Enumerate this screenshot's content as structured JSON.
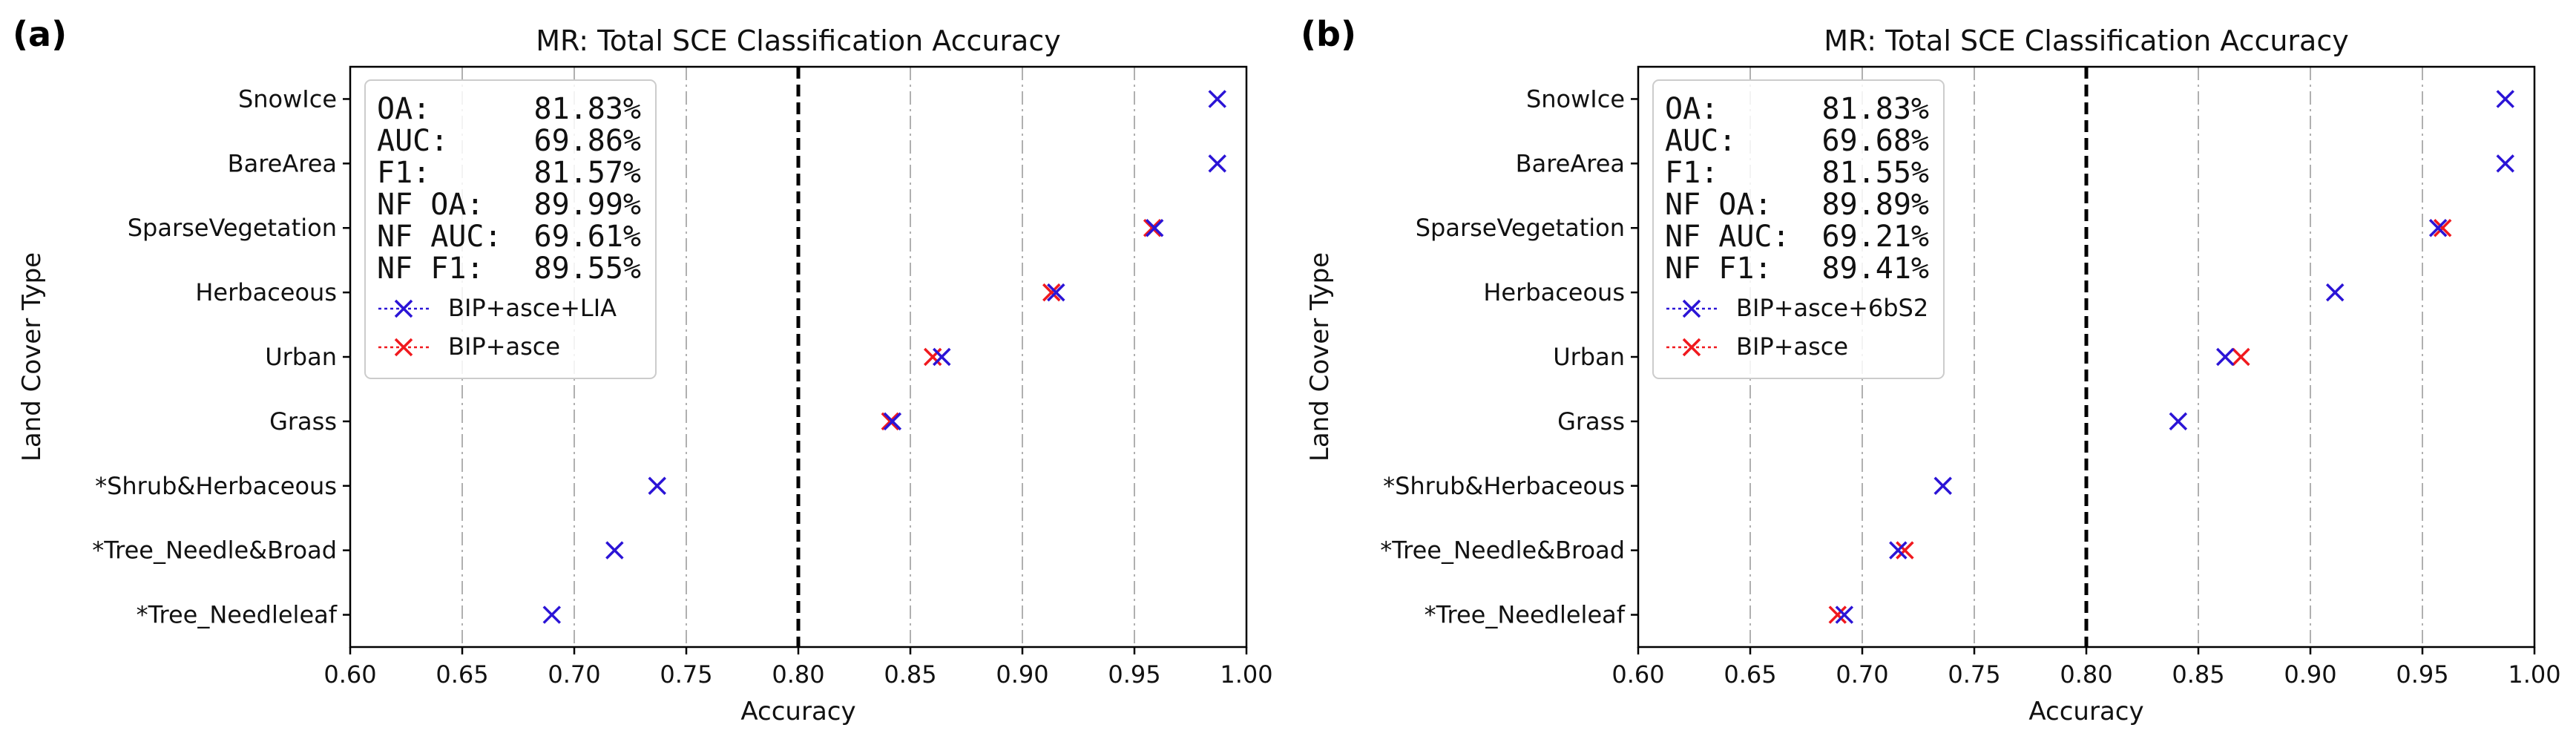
{
  "chart_data": [
    {
      "panel_label": "(a)",
      "type": "scatter",
      "title": "MR: Total SCE Classification Accuracy",
      "xlabel": "Accuracy",
      "ylabel": "Land Cover Type",
      "xlim": [
        0.6,
        1.0
      ],
      "xticks": [
        "0.60",
        "0.65",
        "0.70",
        "0.75",
        "0.80",
        "0.85",
        "0.90",
        "0.95",
        "1.00"
      ],
      "reference_line_x": 0.8,
      "categories": [
        "SnowIce",
        "BareArea",
        "SparseVegetation",
        "Herbaceous",
        "Urban",
        "Grass",
        "*Shrub&Herbaceous",
        "*Tree_Needle&Broad",
        "*Tree_Needleleaf"
      ],
      "series": [
        {
          "name": "BIP+asce+LIA",
          "color": "#2b14d6",
          "values": [
            0.987,
            0.987,
            0.959,
            0.915,
            0.864,
            0.842,
            0.737,
            0.718,
            0.69
          ]
        },
        {
          "name": "BIP+asce",
          "color": "#f0191e",
          "values": [
            null,
            null,
            0.958,
            0.913,
            0.86,
            0.841,
            null,
            null,
            null
          ]
        }
      ],
      "legend_location": "top-left",
      "stats": [
        {
          "label": "OA:",
          "value": "81.83%"
        },
        {
          "label": "AUC:",
          "value": "69.86%"
        },
        {
          "label": "F1:",
          "value": "81.57%"
        },
        {
          "label": "NF OA:",
          "value": "89.99%"
        },
        {
          "label": "NF AUC:",
          "value": "69.61%"
        },
        {
          "label": "NF F1:",
          "value": "89.55%"
        }
      ]
    },
    {
      "panel_label": "(b)",
      "type": "scatter",
      "title": "MR: Total SCE Classification Accuracy",
      "xlabel": "Accuracy",
      "ylabel": "Land Cover Type",
      "xlim": [
        0.6,
        1.0
      ],
      "xticks": [
        "0.60",
        "0.65",
        "0.70",
        "0.75",
        "0.80",
        "0.85",
        "0.90",
        "0.95",
        "1.00"
      ],
      "reference_line_x": 0.8,
      "categories": [
        "SnowIce",
        "BareArea",
        "SparseVegetation",
        "Herbaceous",
        "Urban",
        "Grass",
        "*Shrub&Herbaceous",
        "*Tree_Needle&Broad",
        "*Tree_Needleleaf"
      ],
      "series": [
        {
          "name": "BIP+asce+6bS2",
          "color": "#2b14d6",
          "values": [
            0.987,
            0.987,
            0.957,
            0.911,
            0.862,
            0.841,
            0.736,
            0.716,
            0.692
          ]
        },
        {
          "name": "BIP+asce",
          "color": "#f0191e",
          "values": [
            null,
            null,
            0.959,
            null,
            0.869,
            null,
            null,
            0.719,
            0.689
          ]
        }
      ],
      "legend_location": "top-left",
      "stats": [
        {
          "label": "OA:",
          "value": "81.83%"
        },
        {
          "label": "AUC:",
          "value": "69.68%"
        },
        {
          "label": "F1:",
          "value": "81.55%"
        },
        {
          "label": "NF OA:",
          "value": "89.89%"
        },
        {
          "label": "NF AUC:",
          "value": "69.21%"
        },
        {
          "label": "NF F1:",
          "value": "89.41%"
        }
      ]
    }
  ]
}
